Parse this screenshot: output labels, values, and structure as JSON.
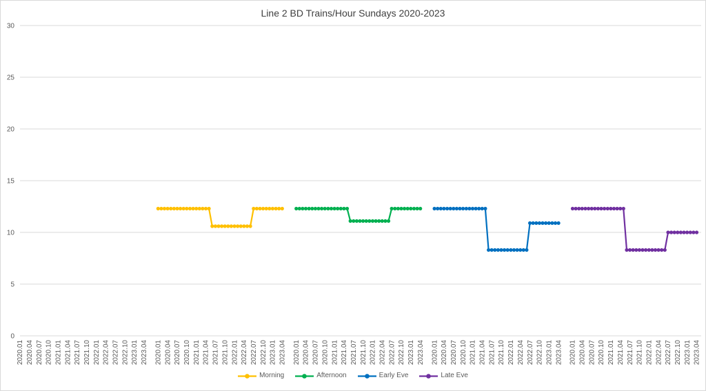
{
  "colors": {
    "background": "#ffffff",
    "border": "#d9d9d9",
    "gridline": "#d9d9d9",
    "title_text": "#404040",
    "axis_text": "#595959",
    "morning": "#FFC000",
    "afternoon": "#00B050",
    "early_eve": "#0070C0",
    "late_eve": "#7030A0"
  },
  "chart_data": {
    "type": "line",
    "title": "Line 2 BD Trains/Hour Sundays 2020-2023",
    "xlabel": "",
    "ylabel": "",
    "ylim": [
      0,
      30
    ],
    "y_ticks": [
      0,
      5,
      10,
      15,
      20,
      25,
      30
    ],
    "grid": "horizontal",
    "legend_position": "bottom",
    "x_axis": {
      "note": "category axis repeats the same month labels 5 times; first repeat block has no data, each series is plotted in its own block",
      "repeats": 5,
      "tick_labels": [
        "2020.01",
        "2020.04",
        "2020.07",
        "2020.10",
        "2021.01",
        "2021.04",
        "2021.07",
        "2021.10",
        "2022.01",
        "2022.04",
        "2022.07",
        "2022.10",
        "2023.01",
        "2023.04"
      ]
    },
    "months": [
      "2020.01",
      "2020.02",
      "2020.03",
      "2020.04",
      "2020.05",
      "2020.06",
      "2020.07",
      "2020.08",
      "2020.09",
      "2020.10",
      "2020.11",
      "2020.12",
      "2021.01",
      "2021.02",
      "2021.03",
      "2021.04",
      "2021.05",
      "2021.06",
      "2021.07",
      "2021.08",
      "2021.09",
      "2021.10",
      "2021.11",
      "2021.12",
      "2022.01",
      "2022.02",
      "2022.03",
      "2022.04",
      "2022.05",
      "2022.06",
      "2022.07",
      "2022.08",
      "2022.09",
      "2022.10",
      "2022.11",
      "2022.12",
      "2023.01",
      "2023.02",
      "2023.03",
      "2023.04"
    ],
    "series": [
      {
        "name": "Morning",
        "color": "#FFC000",
        "panel": 1,
        "values": [
          12.3,
          12.3,
          12.3,
          12.3,
          12.3,
          12.3,
          12.3,
          12.3,
          12.3,
          12.3,
          12.3,
          12.3,
          12.3,
          12.3,
          12.3,
          12.3,
          12.3,
          10.6,
          10.6,
          10.6,
          10.6,
          10.6,
          10.6,
          10.6,
          10.6,
          10.6,
          10.6,
          10.6,
          10.6,
          10.6,
          12.3,
          12.3,
          12.3,
          12.3,
          12.3,
          12.3,
          12.3,
          12.3,
          12.3,
          12.3
        ]
      },
      {
        "name": "Afternoon",
        "color": "#00B050",
        "panel": 2,
        "values": [
          12.3,
          12.3,
          12.3,
          12.3,
          12.3,
          12.3,
          12.3,
          12.3,
          12.3,
          12.3,
          12.3,
          12.3,
          12.3,
          12.3,
          12.3,
          12.3,
          12.3,
          11.1,
          11.1,
          11.1,
          11.1,
          11.1,
          11.1,
          11.1,
          11.1,
          11.1,
          11.1,
          11.1,
          11.1,
          11.1,
          12.3,
          12.3,
          12.3,
          12.3,
          12.3,
          12.3,
          12.3,
          12.3,
          12.3,
          12.3
        ]
      },
      {
        "name": "Early Eve",
        "color": "#0070C0",
        "panel": 3,
        "values": [
          12.3,
          12.3,
          12.3,
          12.3,
          12.3,
          12.3,
          12.3,
          12.3,
          12.3,
          12.3,
          12.3,
          12.3,
          12.3,
          12.3,
          12.3,
          12.3,
          12.3,
          8.3,
          8.3,
          8.3,
          8.3,
          8.3,
          8.3,
          8.3,
          8.3,
          8.3,
          8.3,
          8.3,
          8.3,
          8.3,
          10.9,
          10.9,
          10.9,
          10.9,
          10.9,
          10.9,
          10.9,
          10.9,
          10.9,
          10.9
        ]
      },
      {
        "name": "Late Eve",
        "color": "#7030A0",
        "panel": 4,
        "values": [
          12.3,
          12.3,
          12.3,
          12.3,
          12.3,
          12.3,
          12.3,
          12.3,
          12.3,
          12.3,
          12.3,
          12.3,
          12.3,
          12.3,
          12.3,
          12.3,
          12.3,
          8.3,
          8.3,
          8.3,
          8.3,
          8.3,
          8.3,
          8.3,
          8.3,
          8.3,
          8.3,
          8.3,
          8.3,
          8.3,
          10.0,
          10.0,
          10.0,
          10.0,
          10.0,
          10.0,
          10.0,
          10.0,
          10.0,
          10.0
        ]
      }
    ]
  }
}
